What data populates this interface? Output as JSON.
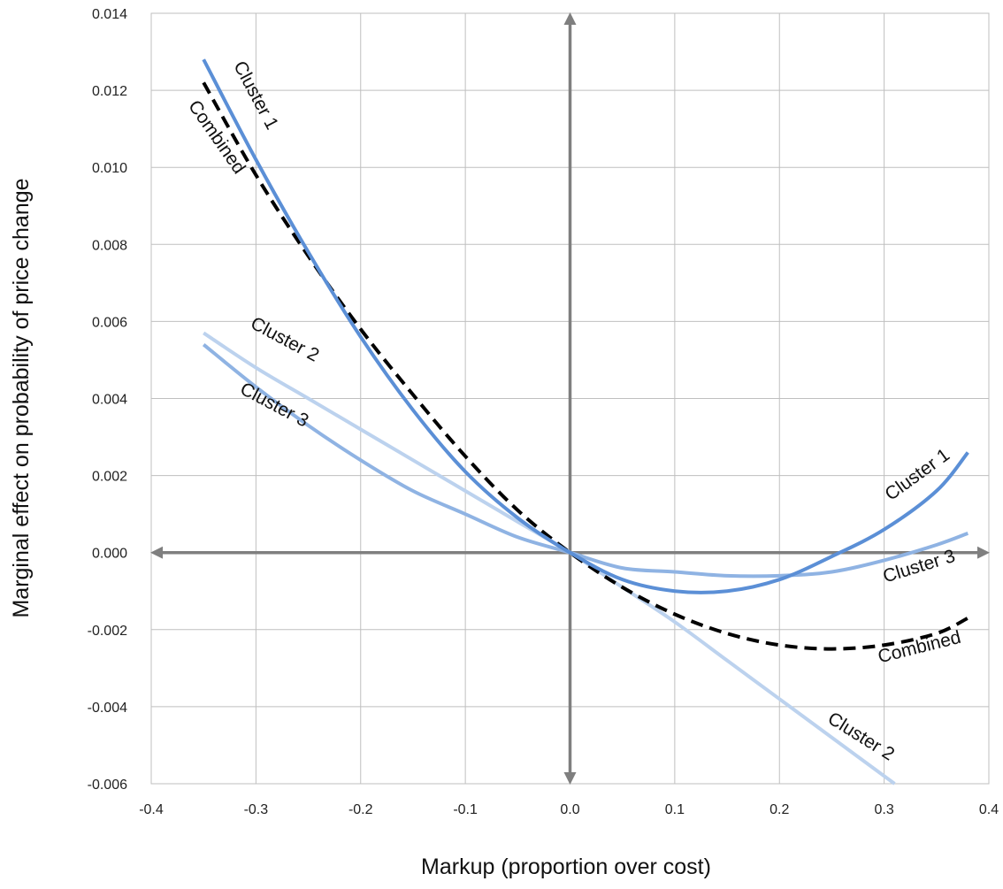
{
  "chart_data": {
    "type": "line",
    "title": "",
    "xlabel": "Markup (proportion over cost)",
    "ylabel": "Marginal effect on probability of price change",
    "xlim": [
      -0.4,
      0.4
    ],
    "ylim": [
      -0.006,
      0.014
    ],
    "x_ticks": [
      -0.4,
      -0.3,
      -0.2,
      -0.1,
      0.0,
      0.1,
      0.2,
      0.3,
      0.4
    ],
    "x_tick_labels": [
      "-0.4",
      "-0.3",
      "-0.2",
      "-0.1",
      "0.0",
      "0.1",
      "0.2",
      "0.3",
      "0.4"
    ],
    "y_ticks": [
      -0.006,
      -0.004,
      -0.002,
      0.0,
      0.002,
      0.004,
      0.006,
      0.008,
      0.01,
      0.012,
      0.014
    ],
    "y_tick_labels": [
      "-0.006",
      "-0.004",
      "-0.002",
      "0.000",
      "0.002",
      "0.004",
      "0.006",
      "0.008",
      "0.010",
      "0.012",
      "0.014"
    ],
    "grid": true,
    "colors": {
      "cluster1": "#5b8fd6",
      "cluster2": "#bcd2ee",
      "cluster3": "#8fb3e3",
      "combined": "#000000",
      "axis": "#7f7f7f",
      "grid": "#bfbfbf"
    },
    "series": [
      {
        "key": "cluster1",
        "name": "Cluster 1",
        "style": "solid",
        "x": [
          -0.35,
          -0.3,
          -0.25,
          -0.2,
          -0.15,
          -0.1,
          -0.05,
          0.0,
          0.05,
          0.1,
          0.15,
          0.2,
          0.25,
          0.3,
          0.35,
          0.38
        ],
        "y": [
          0.0128,
          0.0102,
          0.0078,
          0.0056,
          0.0037,
          0.0021,
          0.0009,
          0.0,
          -0.0007,
          -0.001,
          -0.001,
          -0.0007,
          -0.0001,
          0.0006,
          0.0016,
          0.0026
        ]
      },
      {
        "key": "cluster2",
        "name": "Cluster 2",
        "style": "solid",
        "x": [
          -0.35,
          -0.3,
          -0.25,
          -0.2,
          -0.15,
          -0.1,
          -0.05,
          0.0,
          0.05,
          0.1,
          0.15,
          0.2,
          0.25,
          0.31
        ],
        "y": [
          0.0057,
          0.0048,
          0.004,
          0.0032,
          0.0024,
          0.0016,
          0.0008,
          0.0,
          -0.0009,
          -0.0018,
          -0.0028,
          -0.0038,
          -0.0048,
          -0.006
        ]
      },
      {
        "key": "cluster3",
        "name": "Cluster 3",
        "style": "solid",
        "x": [
          -0.35,
          -0.3,
          -0.25,
          -0.2,
          -0.15,
          -0.1,
          -0.05,
          0.0,
          0.05,
          0.1,
          0.15,
          0.2,
          0.25,
          0.3,
          0.35,
          0.38
        ],
        "y": [
          0.0054,
          0.0043,
          0.0033,
          0.0024,
          0.0016,
          0.001,
          0.0004,
          0.0,
          -0.0004,
          -0.0005,
          -0.0006,
          -0.0006,
          -0.0005,
          -0.0002,
          0.0002,
          0.0005
        ]
      },
      {
        "key": "combined",
        "name": "Combined",
        "style": "dashed",
        "x": [
          -0.35,
          -0.3,
          -0.25,
          -0.2,
          -0.15,
          -0.1,
          -0.05,
          0.0,
          0.05,
          0.1,
          0.15,
          0.2,
          0.25,
          0.3,
          0.35,
          0.38
        ],
        "y": [
          0.0122,
          0.0098,
          0.0077,
          0.0058,
          0.0041,
          0.0025,
          0.0011,
          0.0,
          -0.0009,
          -0.0016,
          -0.0021,
          -0.0024,
          -0.0025,
          -0.0024,
          -0.0021,
          -0.0017
        ]
      }
    ],
    "annotations": [
      {
        "text": "Cluster 1",
        "series": "cluster1",
        "x": -0.305,
        "y": 0.0118,
        "rotate": 62
      },
      {
        "text": "Combined",
        "series": "combined",
        "x": -0.342,
        "y": 0.0107,
        "rotate": 55
      },
      {
        "text": "Cluster 2",
        "series": "cluster2",
        "x": -0.275,
        "y": 0.0054,
        "rotate": 28
      },
      {
        "text": "Cluster 3",
        "series": "cluster3",
        "x": -0.285,
        "y": 0.0037,
        "rotate": 28
      },
      {
        "text": "Cluster 1",
        "series": "cluster1",
        "x": 0.335,
        "y": 0.0019,
        "rotate": -36
      },
      {
        "text": "Cluster 3",
        "series": "cluster3",
        "x": 0.335,
        "y": -0.0005,
        "rotate": -17
      },
      {
        "text": "Combined",
        "series": "combined",
        "x": 0.335,
        "y": -0.0026,
        "rotate": -14
      },
      {
        "text": "Cluster 2",
        "series": "cluster2",
        "x": 0.275,
        "y": -0.0049,
        "rotate": 32
      }
    ]
  }
}
